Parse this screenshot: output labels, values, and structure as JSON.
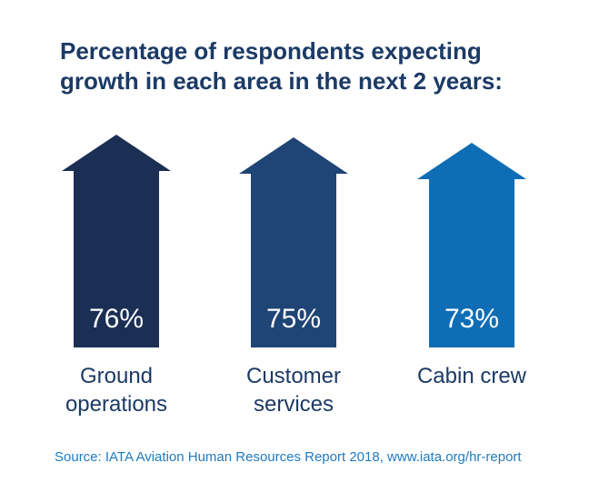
{
  "title_lines": [
    "Percentage of respondents expecting",
    "growth in each area in the next 2 years:"
  ],
  "source": "Source: IATA Aviation Human Resources Report 2018, www.iata.org/hr-report",
  "colors": {
    "text": "#1b3a66",
    "source": "#1f7bc1",
    "value_text": "#ffffff"
  },
  "chart_data": {
    "type": "bar",
    "title": "Percentage of respondents expecting growth in each area in the next 2 years:",
    "categories": [
      "Ground operations",
      "Customer services",
      "Cabin crew"
    ],
    "category_lines": [
      [
        "Ground",
        "operations"
      ],
      [
        "Customer",
        "services"
      ],
      [
        "Cabin crew"
      ]
    ],
    "values": [
      76,
      75,
      73
    ],
    "value_labels": [
      "76%",
      "75%",
      "73%"
    ],
    "bar_colors": [
      "#1b2f55",
      "#1f4476",
      "#0e6db4"
    ],
    "mark_shape": "up-arrow",
    "unit": "%"
  }
}
